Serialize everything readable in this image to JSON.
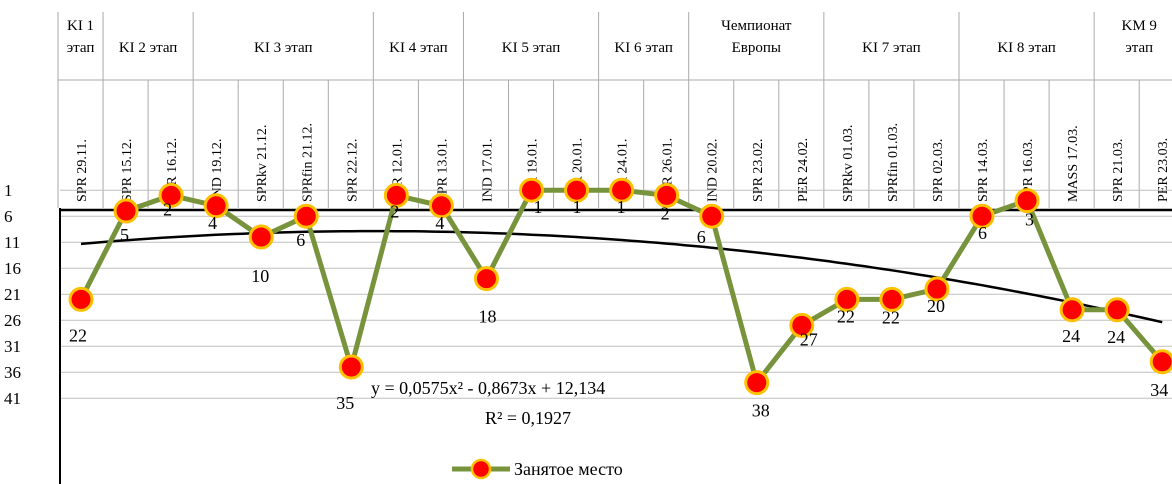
{
  "chart_data": {
    "type": "line",
    "stages": [
      {
        "label": [
          "KI 1",
          "этап"
        ],
        "from": 0,
        "to": 0
      },
      {
        "label": [
          "KI 2 этап"
        ],
        "from": 1,
        "to": 2
      },
      {
        "label": [
          "KI 3 этап"
        ],
        "from": 3,
        "to": 6
      },
      {
        "label": [
          "KI 4 этап"
        ],
        "from": 7,
        "to": 8
      },
      {
        "label": [
          "KI 5 этап"
        ],
        "from": 9,
        "to": 11
      },
      {
        "label": [
          "KI 6 этап"
        ],
        "from": 12,
        "to": 13
      },
      {
        "label": [
          "Чемпионат",
          "Европы"
        ],
        "from": 14,
        "to": 16
      },
      {
        "label": [
          "KI 7 этап"
        ],
        "from": 17,
        "to": 19
      },
      {
        "label": [
          "KI 8 этап"
        ],
        "from": 20,
        "to": 22
      },
      {
        "label": [
          "KM 9",
          "этап"
        ],
        "from": 23,
        "to": 24
      }
    ],
    "categories": [
      "SPR 29.11.",
      "SPR 15.12.",
      "PER 16.12.",
      "IND 19.12.",
      "SPRkv 21.12.",
      "SPRfin 21.12.",
      "SPR 22.12.",
      "SPR 12.01.",
      "SPR 13.01.",
      "IND 17.01.",
      "SPR 19.01.",
      "PER 20.01.",
      "SPR 24.01.",
      "PER 26.01.",
      "IND 20.02.",
      "SPR 23.02.",
      "PER 24.02.",
      "SPRkv 01.03.",
      "SPRfin 01.03.",
      "SPR 02.03.",
      "SPR 14.03.",
      "SPR 16.03.",
      "MASS 17.03.",
      "SPR 21.03.",
      "PER 23.03."
    ],
    "series": [
      {
        "name": "Занятое место",
        "values": [
          22,
          5,
          2,
          4,
          10,
          6,
          35,
          2,
          4,
          18,
          1,
          1,
          1,
          2,
          6,
          38,
          27,
          22,
          22,
          20,
          6,
          3,
          24,
          24,
          34
        ],
        "line_color": "#77933C",
        "marker_color": "#FF0000",
        "marker_edge": "#FFC000"
      }
    ],
    "data_labels": [
      "22",
      "5",
      "2",
      "4",
      "10",
      "6",
      "35",
      "2",
      "4",
      "18",
      "1",
      "1",
      "1",
      "2",
      "6",
      "38",
      "27",
      "22",
      "22",
      "20",
      "6",
      "3",
      "24",
      "24",
      "34"
    ],
    "y_ticks": [
      "1",
      "6",
      "11",
      "16",
      "21",
      "26",
      "31",
      "36",
      "41"
    ],
    "y_inverted": true,
    "ylim": [
      1,
      41
    ],
    "trendline": {
      "type": "polynomial",
      "order": 2,
      "a": 0.0575,
      "b": -0.8673,
      "c": 12.134,
      "color": "#000000"
    },
    "equation": "y = 0,0575x² - 0,8673x + 12,134",
    "r_squared": "R² = 0,1927",
    "legend": {
      "position": "bottom-center",
      "label": "Занятое место"
    },
    "grid": true
  }
}
